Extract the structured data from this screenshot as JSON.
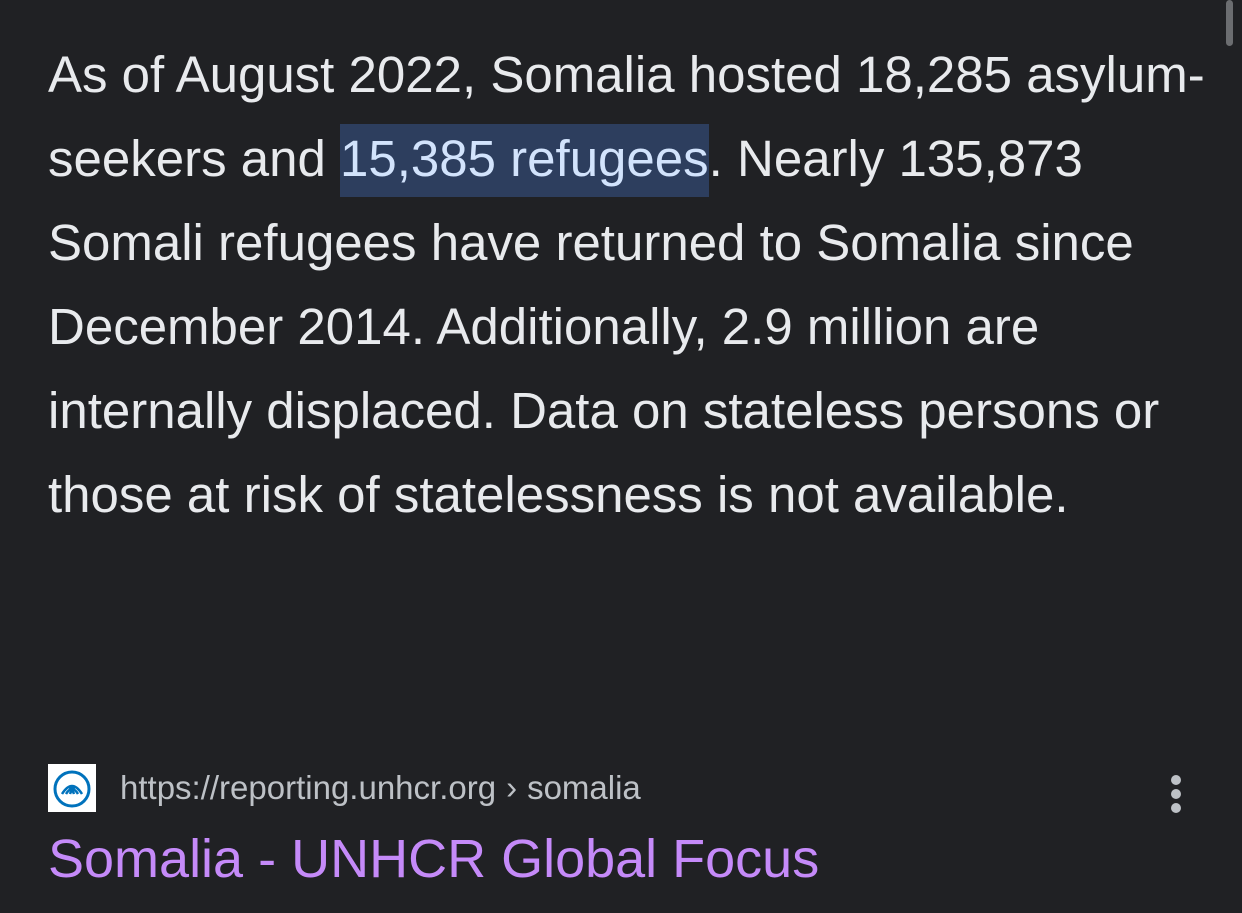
{
  "snippet": {
    "before": "As of August 2022, Somalia hosted 18,285 asylum-seekers and ",
    "highlight": "15,385 refugees",
    "after": ". Nearly 135,873 Somali refugees have returned to Somalia since December 2014. Additionally, 2.9 million are internally displaced. Data on stateless persons or those at risk of statelessness is not available."
  },
  "source": {
    "url": "https://reporting.unhcr.org",
    "separator": "›",
    "path": "somalia"
  },
  "result": {
    "title": "Somalia - UNHCR Global Focus"
  }
}
